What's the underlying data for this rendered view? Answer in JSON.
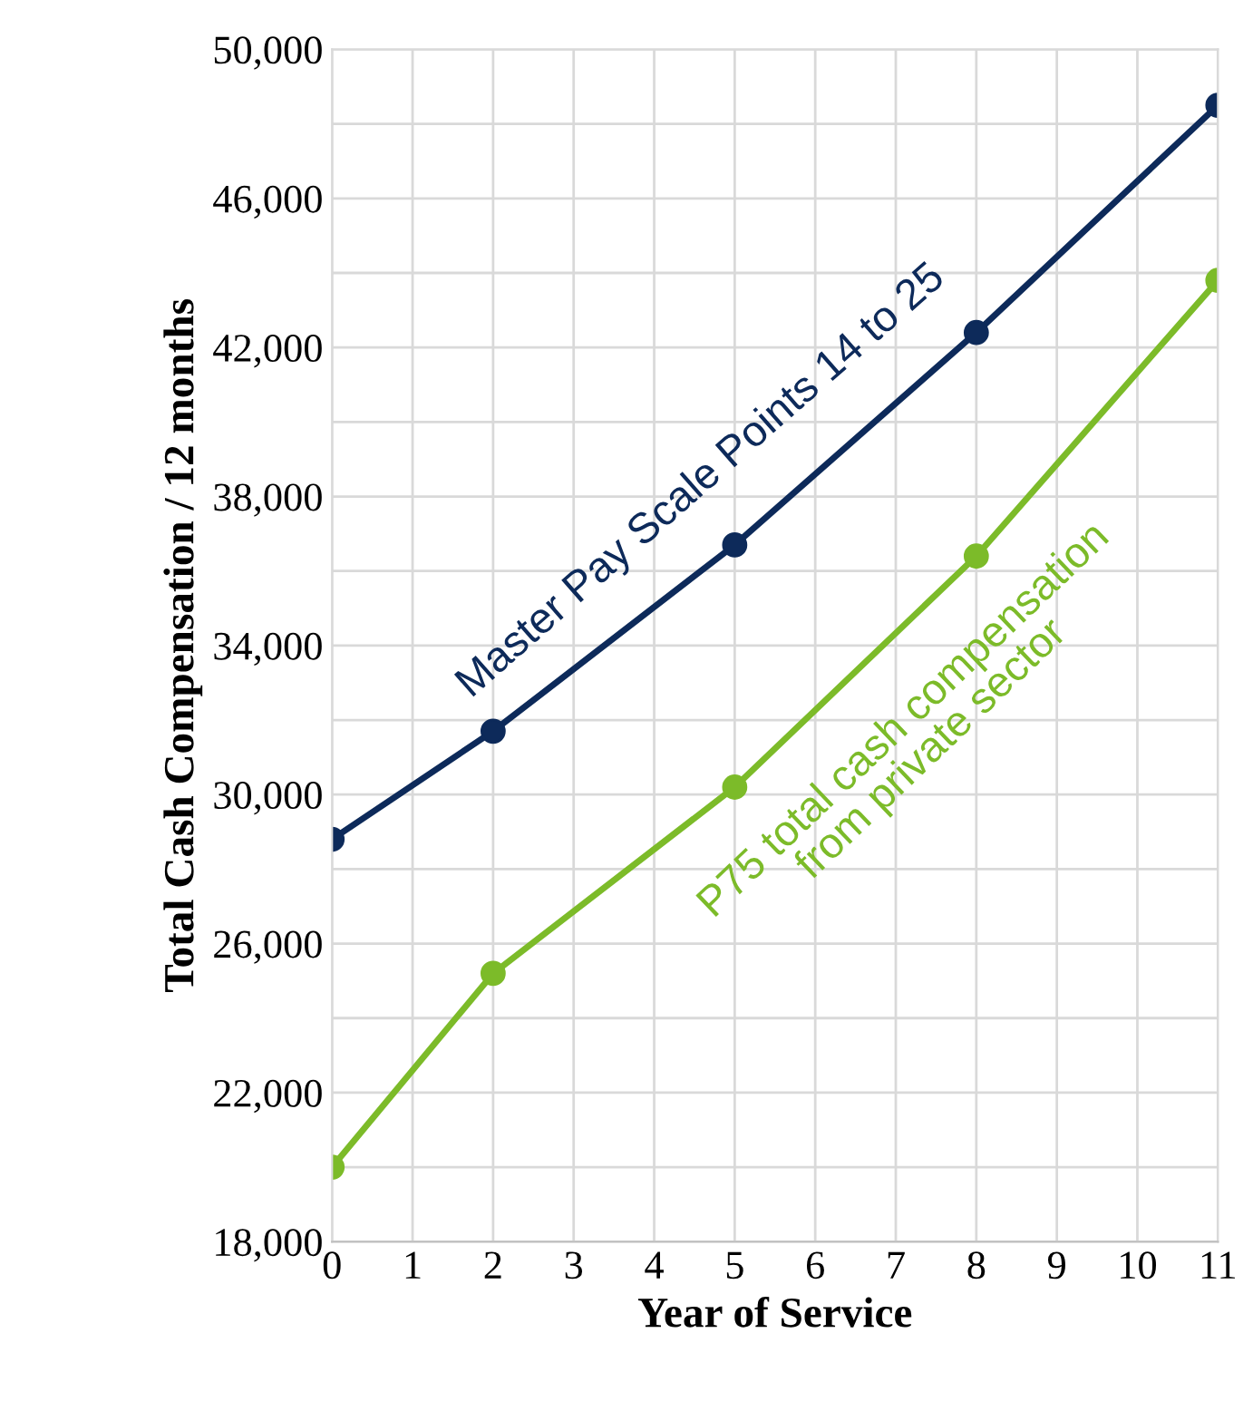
{
  "chart_data": {
    "type": "line",
    "xlabel": "Year of Service",
    "ylabel": "Total Cash Compensation / 12 months",
    "x": [
      0,
      2,
      5,
      8,
      11
    ],
    "series": [
      {
        "color": "#0d2a5a",
        "values": [
          28800,
          31700,
          36700,
          42400,
          48500
        ]
      },
      {
        "color": "#7cbb29",
        "values": [
          20000,
          25200,
          30200,
          36400,
          43800
        ]
      }
    ],
    "annotations": [
      "Master Pay Scale Points 14 to 25",
      "P75 total cash compensation\nfrom private sector"
    ],
    "xlim": [
      0,
      11
    ],
    "xticks": [
      0,
      1,
      2,
      3,
      4,
      5,
      6,
      7,
      8,
      9,
      10,
      11
    ],
    "ylim": [
      18000,
      50000
    ],
    "yticks": [
      {
        "value": 18000,
        "label": "18,000"
      },
      {
        "value": 20000,
        "label": null
      },
      {
        "value": 22000,
        "label": "22,000"
      },
      {
        "value": 24000,
        "label": null
      },
      {
        "value": 26000,
        "label": "26,000"
      },
      {
        "value": 28000,
        "label": null
      },
      {
        "value": 30000,
        "label": "30,000"
      },
      {
        "value": 32000,
        "label": null
      },
      {
        "value": 34000,
        "label": "34,000"
      },
      {
        "value": 36000,
        "label": null
      },
      {
        "value": 38000,
        "label": "38,000"
      },
      {
        "value": 40000,
        "label": null
      },
      {
        "value": 42000,
        "label": "42,000"
      },
      {
        "value": 44000,
        "label": null
      },
      {
        "value": 46000,
        "label": "46,000"
      },
      {
        "value": 48000,
        "label": null
      },
      {
        "value": 50000,
        "label": "50,000"
      }
    ],
    "grid": true,
    "marker": "circle",
    "line_style": "solid",
    "legend": false
  }
}
